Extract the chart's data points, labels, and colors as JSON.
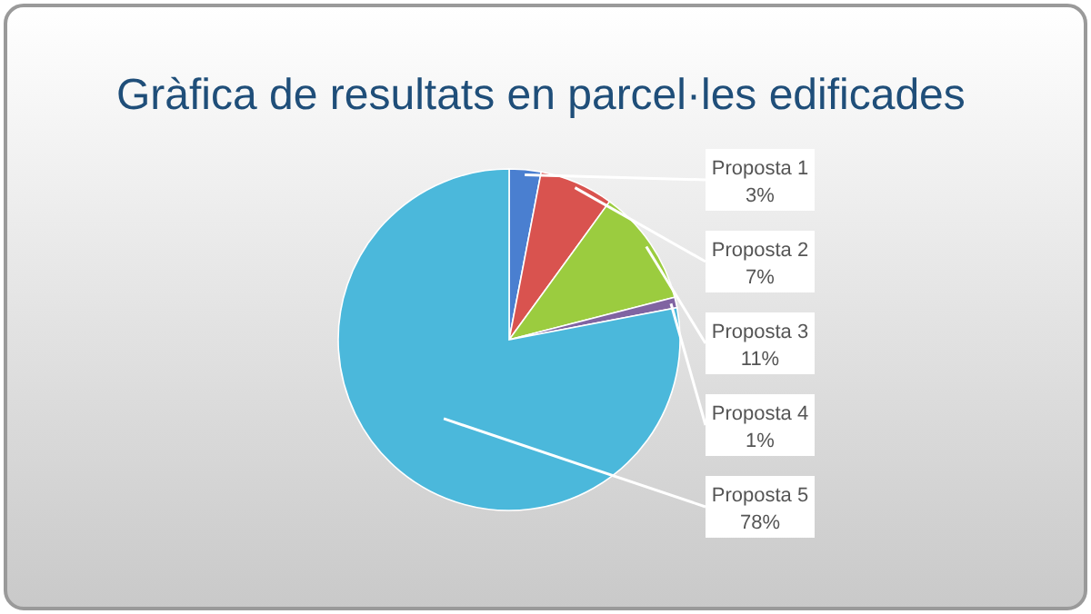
{
  "chart_data": {
    "type": "pie",
    "title": "Gràfica de resultats en parcel·les edificades",
    "categories": [
      "Proposta 1",
      "Proposta 2",
      "Proposta 3",
      "Proposta 4",
      "Proposta 5"
    ],
    "values": [
      3,
      7,
      11,
      1,
      78
    ],
    "value_labels": [
      "3%",
      "7%",
      "11%",
      "1%",
      "78%"
    ],
    "colors": [
      "#4a7fd0",
      "#d9534f",
      "#9bcc3f",
      "#8064a2",
      "#4bb8db"
    ]
  }
}
